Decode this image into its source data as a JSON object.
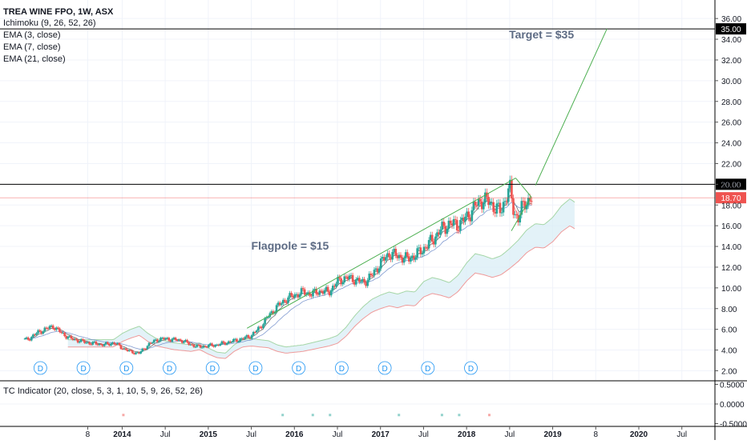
{
  "chart_data": {
    "type": "candlestick",
    "title": "TREA WINE FPO, 1W, ASX",
    "indicators": [
      "Ichimoku (9, 26, 52, 26)",
      "EMA (3, close)",
      "EMA (7, close)",
      "EMA (21, close)"
    ],
    "sub_indicator": "TC Indicator (20, close, 5, 3, 1, 10, 5, 9, 26, 52, 26)",
    "x_ticks": [
      "8",
      "2014",
      "Jul",
      "2015",
      "Jul",
      "2016",
      "Jul",
      "2017",
      "Jul",
      "2018",
      "Jul",
      "2019",
      "8",
      "2020",
      "Jul"
    ],
    "y_ticks": [
      "2.00",
      "4.00",
      "6.00",
      "8.00",
      "10.00",
      "12.00",
      "14.00",
      "16.00",
      "18.00",
      "20.00",
      "22.00",
      "24.00",
      "26.00",
      "28.00",
      "30.00",
      "32.00",
      "34.00",
      "36.00"
    ],
    "ylim": [
      1.0,
      37.0
    ],
    "sub_y_ticks": [
      "0.5000",
      "0.0000",
      "-0.5000"
    ],
    "sub_ylim": [
      -0.55,
      0.55
    ],
    "horizontal_lines": [
      {
        "value": 35.0,
        "label": "35.00",
        "color": "#000000"
      },
      {
        "value": 20.0,
        "label": "20.00",
        "color": "#000000"
      }
    ],
    "price_line": {
      "value": 18.7,
      "label": "18.70",
      "color": "#ef5350"
    },
    "annotations": [
      {
        "text": "Target = $35",
        "x": 2018.87,
        "y": 34.1
      },
      {
        "text": "Flagpole = $15",
        "x": 2015.95,
        "y": 13.7
      }
    ],
    "trendlines": [
      {
        "from": [
          2015.45,
          6.1
        ],
        "to": [
          2018.57,
          20.6
        ],
        "color": "#4caf50"
      },
      {
        "from": [
          2018.57,
          20.6
        ],
        "to": [
          2018.75,
          18.8
        ],
        "color": "#4caf50"
      },
      {
        "from": [
          2018.52,
          15.5
        ],
        "to": [
          2018.75,
          18.8
        ],
        "color": "#4caf50"
      },
      {
        "from": [
          2018.8,
          19.9
        ],
        "to": [
          2019.63,
          35.0
        ],
        "color": "#4caf50"
      }
    ],
    "dividend_markers": {
      "label": "D",
      "x": [
        2013.05,
        2013.55,
        2014.05,
        2014.55,
        2015.05,
        2015.55,
        2016.05,
        2016.55,
        2017.05,
        2017.55,
        2018.05
      ]
    },
    "price_series": [
      [
        2012.9,
        5.0
      ],
      [
        2013.0,
        5.6
      ],
      [
        2013.1,
        6.0
      ],
      [
        2013.2,
        6.3
      ],
      [
        2013.3,
        5.6
      ],
      [
        2013.4,
        5.1
      ],
      [
        2013.5,
        4.9
      ],
      [
        2013.6,
        4.7
      ],
      [
        2013.7,
        4.6
      ],
      [
        2013.8,
        4.5
      ],
      [
        2013.9,
        4.7
      ],
      [
        2014.0,
        4.2
      ],
      [
        2014.1,
        3.8
      ],
      [
        2014.2,
        3.7
      ],
      [
        2014.3,
        4.5
      ],
      [
        2014.4,
        5.0
      ],
      [
        2014.5,
        5.1
      ],
      [
        2014.6,
        5.0
      ],
      [
        2014.7,
        4.9
      ],
      [
        2014.8,
        4.5
      ],
      [
        2014.9,
        4.3
      ],
      [
        2015.0,
        4.4
      ],
      [
        2015.1,
        4.5
      ],
      [
        2015.2,
        4.7
      ],
      [
        2015.3,
        4.9
      ],
      [
        2015.4,
        5.1
      ],
      [
        2015.5,
        5.4
      ],
      [
        2015.6,
        6.2
      ],
      [
        2015.7,
        7.3
      ],
      [
        2015.8,
        8.2
      ],
      [
        2015.9,
        8.9
      ],
      [
        2016.0,
        9.3
      ],
      [
        2016.1,
        9.6
      ],
      [
        2016.2,
        9.4
      ],
      [
        2016.3,
        9.7
      ],
      [
        2016.4,
        9.6
      ],
      [
        2016.5,
        10.6
      ],
      [
        2016.6,
        11.0
      ],
      [
        2016.7,
        10.8
      ],
      [
        2016.8,
        10.5
      ],
      [
        2016.9,
        11.2
      ],
      [
        2017.0,
        12.4
      ],
      [
        2017.1,
        13.3
      ],
      [
        2017.2,
        13.1
      ],
      [
        2017.3,
        12.8
      ],
      [
        2017.4,
        13.1
      ],
      [
        2017.5,
        13.8
      ],
      [
        2017.6,
        14.6
      ],
      [
        2017.7,
        15.6
      ],
      [
        2017.8,
        16.2
      ],
      [
        2017.9,
        16.1
      ],
      [
        2018.0,
        16.8
      ],
      [
        2018.1,
        17.9
      ],
      [
        2018.2,
        18.6
      ],
      [
        2018.3,
        18.0
      ],
      [
        2018.4,
        17.3
      ],
      [
        2018.45,
        18.7
      ],
      [
        2018.5,
        19.7
      ],
      [
        2018.55,
        17.2
      ],
      [
        2018.6,
        16.8
      ],
      [
        2018.65,
        17.8
      ],
      [
        2018.7,
        18.4
      ],
      [
        2018.75,
        18.7
      ]
    ]
  }
}
